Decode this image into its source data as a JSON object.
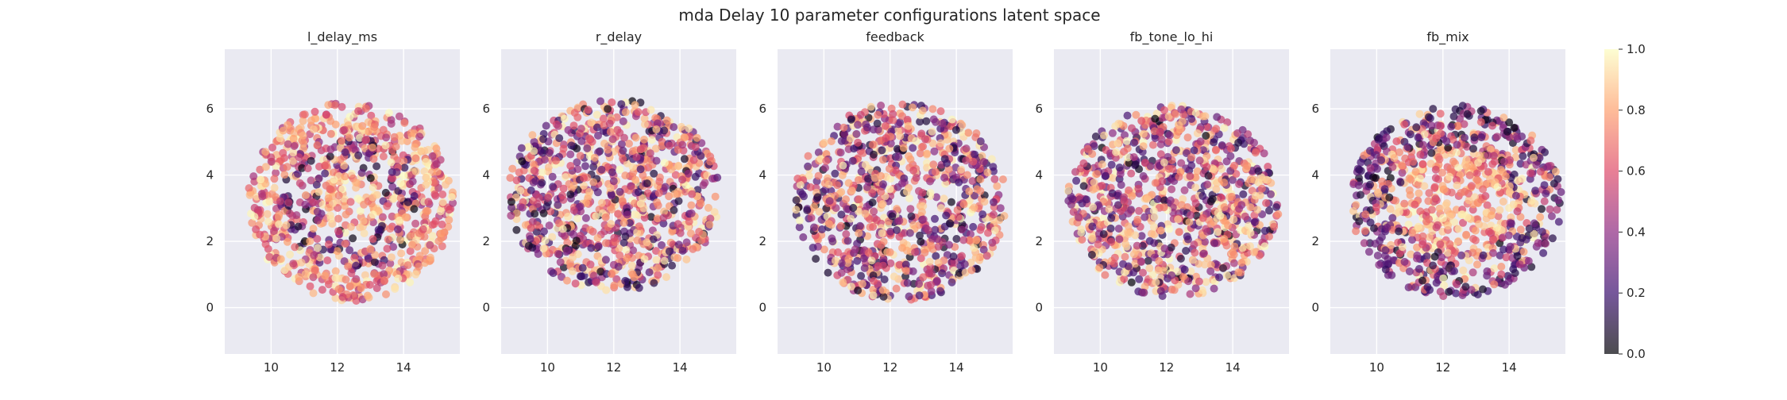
{
  "chart_data": {
    "type": "scatter",
    "title": "mda Delay 10 parameter configurations latent space",
    "colormap": [
      "#000004",
      "#3b0f70",
      "#8c2981",
      "#de4968",
      "#fe9f6d",
      "#fcfdbf"
    ],
    "point_alpha": 0.7,
    "axes_background": "#eaeaf2",
    "grid": true,
    "colorbar": {
      "min": 0.0,
      "max": 1.0,
      "ticks": [
        "0.0",
        "0.2",
        "0.4",
        "0.6",
        "0.8",
        "1.0"
      ]
    },
    "x_ticks": [
      10,
      12,
      14
    ],
    "y_ticks": [
      0,
      2,
      4,
      6
    ],
    "xlim": [
      8.6,
      15.7
    ],
    "ylim": [
      -1.4,
      7.8
    ],
    "panels": [
      {
        "title": "l_delay_ms",
        "cx": 12.4,
        "cy": 3.2,
        "rx": 3.1,
        "ry": 3.0,
        "seed": 11,
        "pattern": "ring"
      },
      {
        "title": "r_delay",
        "cx": 12.0,
        "cy": 3.4,
        "rx": 3.2,
        "ry": 2.9,
        "seed": 23,
        "pattern": "mixed"
      },
      {
        "title": "feedback",
        "cx": 12.3,
        "cy": 3.2,
        "rx": 3.2,
        "ry": 3.0,
        "seed": 37,
        "pattern": "mixed"
      },
      {
        "title": "fb_tone_lo_hi",
        "cx": 12.2,
        "cy": 3.2,
        "rx": 3.2,
        "ry": 2.9,
        "seed": 41,
        "pattern": "mixed"
      },
      {
        "title": "fb_mix",
        "cx": 12.4,
        "cy": 3.2,
        "rx": 3.2,
        "ry": 2.9,
        "seed": 53,
        "pattern": "center-bright"
      }
    ]
  }
}
